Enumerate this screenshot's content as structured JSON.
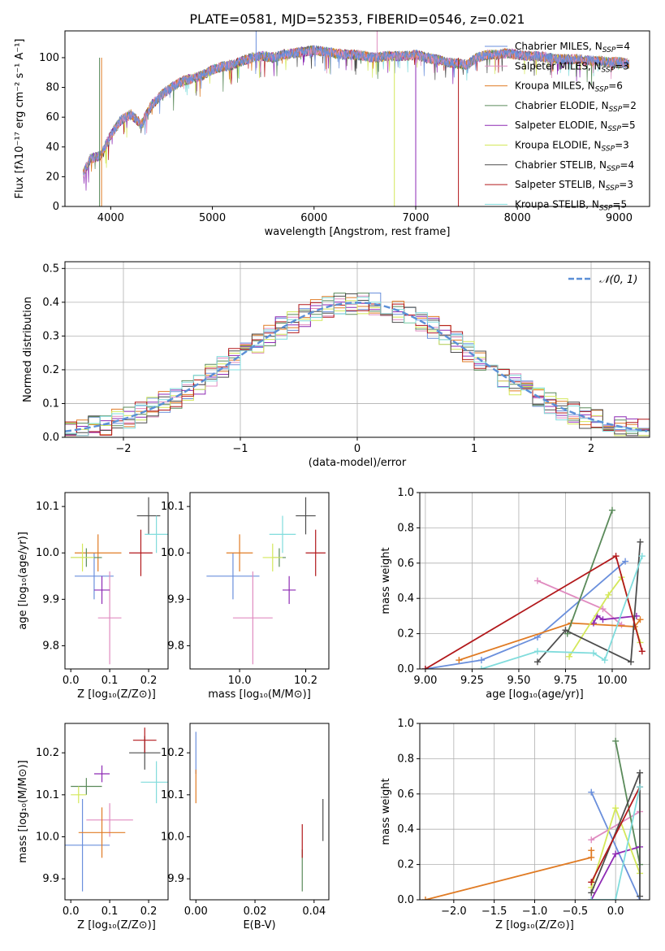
{
  "figure_title": "PLATE=0581, MJD=52353, FIBERID=0546, z=0.021",
  "models": [
    {
      "name": "Chabrier MILES",
      "nssp": "4",
      "color": "#6a8fdc"
    },
    {
      "name": "Salpeter MILES",
      "nssp": "3",
      "color": "#e08cc0"
    },
    {
      "name": "Kroupa MILES",
      "nssp": "6",
      "color": "#e07b24"
    },
    {
      "name": "Chabrier ELODIE",
      "nssp": "2",
      "color": "#5a8a5a"
    },
    {
      "name": "Salpeter ELODIE",
      "nssp": "5",
      "color": "#8e2ab4"
    },
    {
      "name": "Kroupa ELODIE",
      "nssp": "3",
      "color": "#d4e85a"
    },
    {
      "name": "Chabrier STELIB",
      "nssp": "4",
      "color": "#4d4d4d"
    },
    {
      "name": "Salpeter STELIB",
      "nssp": "3",
      "color": "#b2181b"
    },
    {
      "name": "Kroupa STELIB",
      "nssp": "5",
      "color": "#80dcdc"
    }
  ],
  "chart_data": [
    {
      "id": "spectrum",
      "type": "line",
      "xlabel": "wavelength [Angstrom, rest frame]",
      "ylabel": "Flux [fλ10⁻¹⁷ erg cm⁻² s⁻¹ A⁻¹]",
      "xlim": [
        3550,
        9300
      ],
      "ylim": [
        0,
        118
      ],
      "xticks": [
        4000,
        5000,
        6000,
        7000,
        8000,
        9000
      ],
      "yticks": [
        0,
        20,
        40,
        60,
        80,
        100
      ],
      "x": [
        3730,
        3800,
        3900,
        4000,
        4100,
        4200,
        4300,
        4400,
        4500,
        4600,
        4700,
        4800,
        4900,
        5000,
        5100,
        5200,
        5300,
        5400,
        5500,
        5600,
        5700,
        5800,
        5900,
        6000,
        6100,
        6200,
        6300,
        6400,
        6500,
        6600,
        6700,
        6800,
        6900,
        7000,
        7100,
        7200,
        7300,
        7400,
        7500,
        7600,
        7700,
        7800,
        7900,
        8000,
        8100,
        8200,
        8300,
        8400,
        8500,
        8600,
        8700,
        8800,
        8900,
        9000,
        9100
      ],
      "y": [
        22,
        32,
        34,
        48,
        58,
        62,
        55,
        68,
        75,
        80,
        84,
        86,
        88,
        92,
        94,
        95,
        98,
        100,
        101,
        100,
        102,
        103,
        104,
        105,
        104,
        103,
        102,
        102,
        101,
        100,
        101,
        101,
        101,
        102,
        100,
        99,
        97,
        96,
        95,
        100,
        102,
        102,
        103,
        102,
        101,
        101,
        100,
        99,
        99,
        99,
        98,
        98,
        97,
        97,
        96
      ],
      "grid": false,
      "legend": "top-right"
    },
    {
      "id": "residual_hist",
      "type": "histogram",
      "xlabel": "(data-model)/error",
      "ylabel": "Normed distribution",
      "xlim": [
        -2.5,
        2.5
      ],
      "ylim": [
        0,
        0.52
      ],
      "xticks": [
        -2,
        -1,
        0,
        1,
        2
      ],
      "yticks": [
        0.0,
        0.1,
        0.2,
        0.3,
        0.4,
        0.5
      ],
      "bin_width": 0.1,
      "reference": {
        "name": "𝒩(0, 1)",
        "mean": 0,
        "sigma": 1,
        "color": "#5b8fd6"
      },
      "grid": true,
      "legend": "top-right"
    },
    {
      "id": "age_vs_Z",
      "type": "errorbar",
      "xlabel": "Z [log₁₀(Z/Z⊙)]",
      "ylabel": "age  [log₁₀(age/yr)]",
      "xlim": [
        -0.015,
        0.25
      ],
      "ylim": [
        9.75,
        10.13
      ],
      "xticks": [
        0.0,
        0.1,
        0.2
      ],
      "yticks": [
        9.8,
        9.9,
        10.0,
        10.1
      ],
      "points": [
        [
          0.06,
          9.95,
          0.05,
          0.05
        ],
        [
          0.1,
          9.86,
          0.03,
          0.1
        ],
        [
          0.07,
          10.0,
          0.06,
          0.04
        ],
        [
          0.04,
          9.99,
          0.04,
          0.02
        ],
        [
          0.08,
          9.92,
          0.02,
          0.03
        ],
        [
          0.03,
          9.99,
          0.03,
          0.03
        ],
        [
          0.2,
          10.08,
          0.03,
          0.04
        ],
        [
          0.18,
          10.0,
          0.03,
          0.05
        ],
        [
          0.22,
          10.04,
          0.03,
          0.04
        ]
      ]
    },
    {
      "id": "age_vs_mass",
      "type": "errorbar",
      "xlabel": "mass [log₁₀(M/M⊙)]",
      "xlim": [
        9.85,
        10.27
      ],
      "ylim": [
        9.75,
        10.13
      ],
      "xticks": [
        10.0,
        10.2
      ],
      "yticks": [
        9.8,
        9.9,
        10.0,
        10.1
      ],
      "points": [
        [
          9.98,
          9.95,
          0.08,
          0.05
        ],
        [
          10.04,
          9.86,
          0.06,
          0.1
        ],
        [
          10.0,
          10.0,
          0.04,
          0.04
        ],
        [
          10.12,
          9.99,
          0.02,
          0.02
        ],
        [
          10.15,
          9.92,
          0.02,
          0.03
        ],
        [
          10.1,
          9.99,
          0.03,
          0.03
        ],
        [
          10.2,
          10.08,
          0.03,
          0.04
        ],
        [
          10.23,
          10.0,
          0.03,
          0.05
        ],
        [
          10.13,
          10.04,
          0.04,
          0.04
        ]
      ]
    },
    {
      "id": "weight_vs_age",
      "type": "line",
      "xlabel": "age  [log₁₀(age/yr)]",
      "ylabel": "mass weight",
      "xlim": [
        8.97,
        10.2
      ],
      "ylim": [
        0,
        1
      ],
      "xticks": [
        9.0,
        9.25,
        9.5,
        9.75,
        10.0
      ],
      "yticks": [
        0.0,
        0.2,
        0.4,
        0.6,
        0.8,
        1.0
      ],
      "series": [
        {
          "x": [
            9.0,
            9.3,
            9.6,
            10.07
          ],
          "y": [
            0.0,
            0.05,
            0.18,
            0.61
          ]
        },
        {
          "x": [
            9.6,
            9.95,
            10.05
          ],
          "y": [
            0.5,
            0.34,
            0.25
          ]
        },
        {
          "x": [
            9.18,
            9.78,
            10.12,
            10.15
          ],
          "y": [
            0.05,
            0.26,
            0.24,
            0.28
          ]
        },
        {
          "x": [
            9.76,
            10.0
          ],
          "y": [
            0.2,
            0.9
          ]
        },
        {
          "x": [
            9.9,
            9.92,
            9.95,
            10.13
          ],
          "y": [
            0.26,
            0.3,
            0.28,
            0.3
          ]
        },
        {
          "x": [
            9.77,
            9.98,
            10.05,
            10.15
          ],
          "y": [
            0.07,
            0.42,
            0.52,
            0.15
          ]
        },
        {
          "x": [
            9.6,
            9.75,
            10.1,
            10.15
          ],
          "y": [
            0.04,
            0.22,
            0.04,
            0.72
          ]
        },
        {
          "x": [
            9.0,
            10.02,
            10.16
          ],
          "y": [
            0.0,
            0.64,
            0.1
          ]
        },
        {
          "x": [
            9.3,
            9.6,
            9.9,
            9.96,
            10.16
          ],
          "y": [
            0.0,
            0.1,
            0.09,
            0.05,
            0.64
          ]
        }
      ],
      "grid": true
    },
    {
      "id": "mass_vs_Z",
      "type": "errorbar",
      "xlabel": "Z [log₁₀(Z/Z⊙)]",
      "ylabel": "mass [log₁₀(M/M⊙)]",
      "xlim": [
        -0.015,
        0.25
      ],
      "ylim": [
        9.85,
        10.27
      ],
      "xticks": [
        0.0,
        0.1,
        0.2
      ],
      "yticks": [
        9.9,
        10.0,
        10.1,
        10.2
      ],
      "points": [
        [
          0.03,
          9.98,
          0.07,
          0.11
        ],
        [
          0.1,
          10.04,
          0.06,
          0.04
        ],
        [
          0.08,
          10.01,
          0.06,
          0.06
        ],
        [
          0.04,
          10.12,
          0.04,
          0.02
        ],
        [
          0.08,
          10.15,
          0.02,
          0.02
        ],
        [
          0.02,
          10.1,
          0.02,
          0.02
        ],
        [
          0.19,
          10.2,
          0.04,
          0.04
        ],
        [
          0.19,
          10.23,
          0.03,
          0.03
        ],
        [
          0.22,
          10.13,
          0.04,
          0.05
        ]
      ]
    },
    {
      "id": "mass_vs_ebv",
      "type": "errorbar",
      "xlabel": "E(B-V)",
      "xlim": [
        -0.002,
        0.045
      ],
      "ylim": [
        9.85,
        10.27
      ],
      "xticks": [
        0.0,
        0.02,
        0.04
      ],
      "yticks": [
        9.9,
        10.0,
        10.1,
        10.2
      ],
      "points": [
        [
          0.0,
          10.2,
          0.0,
          0.05
        ],
        [
          0.0,
          10.12,
          0.0,
          0.04
        ],
        [
          0.036,
          9.92,
          0.0,
          0.05
        ],
        [
          0.043,
          10.04,
          0.0,
          0.05
        ],
        [
          0.036,
          9.99,
          0.0,
          0.04
        ]
      ]
    },
    {
      "id": "weight_vs_Z",
      "type": "line",
      "xlabel": "Z [log₁₀(Z/Z⊙)]",
      "ylabel": "mass weight",
      "xlim": [
        -2.42,
        0.42
      ],
      "ylim": [
        0,
        1
      ],
      "xticks": [
        -2.0,
        -1.5,
        -1.0,
        -0.5,
        0.0
      ],
      "yticks": [
        0.0,
        0.2,
        0.4,
        0.6,
        0.8,
        1.0
      ],
      "series": [
        {
          "x": [
            -0.3,
            0.3
          ],
          "y": [
            0.61,
            0.0
          ]
        },
        {
          "x": [
            -0.3,
            0.3
          ],
          "y": [
            0.34,
            0.5
          ]
        },
        {
          "x": [
            -2.35,
            -0.3,
            -0.3
          ],
          "y": [
            0.0,
            0.24,
            0.28
          ]
        },
        {
          "x": [
            0.0,
            0.3
          ],
          "y": [
            0.9,
            0.2
          ]
        },
        {
          "x": [
            -0.3,
            0.0,
            0.3
          ],
          "y": [
            0.0,
            0.26,
            0.3
          ]
        },
        {
          "x": [
            -0.3,
            0.0,
            0.3
          ],
          "y": [
            0.07,
            0.52,
            0.15
          ]
        },
        {
          "x": [
            -0.3,
            0.3,
            0.3
          ],
          "y": [
            0.04,
            0.72,
            0.02
          ]
        },
        {
          "x": [
            -0.3,
            0.3
          ],
          "y": [
            0.1,
            0.64
          ]
        },
        {
          "x": [
            -0.3,
            0.0,
            0.3
          ],
          "y": [
            0.0,
            0.0,
            0.64
          ]
        }
      ],
      "grid": true
    }
  ]
}
